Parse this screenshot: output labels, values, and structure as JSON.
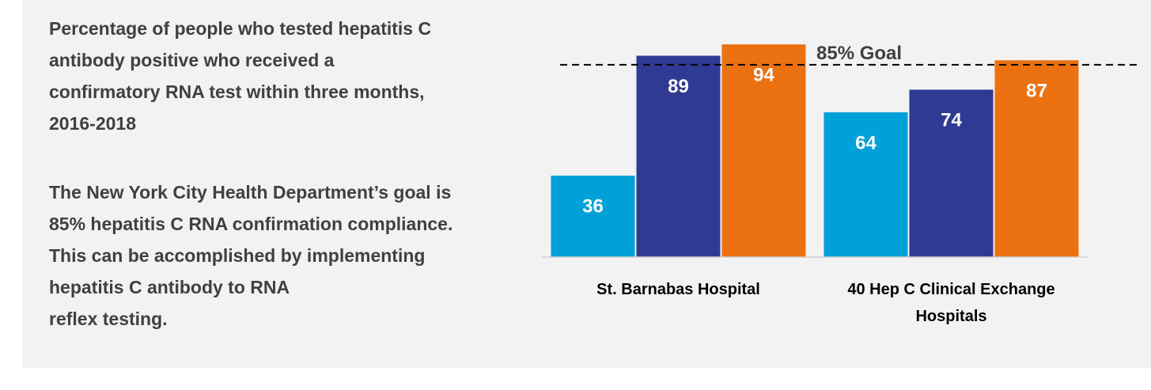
{
  "text": {
    "title": "Percentage of people who tested hepatitis C antibody positive who received a confirmatory RNA test within three months, 2016-2018",
    "body": "The New York City Health Department’s goal is 85% hepatitis C RNA confirmation compliance. This can be accomplished by implementing hepatitis C antibody to RNA\nreflex testing."
  },
  "chart_data": {
    "type": "bar",
    "categories": [
      "St. Barnabas Hospital",
      "40 Hep C Clinical Exchange Hospitals"
    ],
    "series": [
      {
        "color": "#00a0d8",
        "values": [
          36,
          64
        ]
      },
      {
        "color": "#2e3a94",
        "values": [
          89,
          74
        ]
      },
      {
        "color": "#ec7211",
        "values": [
          94,
          87
        ]
      }
    ],
    "ylim": [
      0,
      100
    ],
    "goal": {
      "value": 85,
      "label": "85% Goal"
    }
  }
}
